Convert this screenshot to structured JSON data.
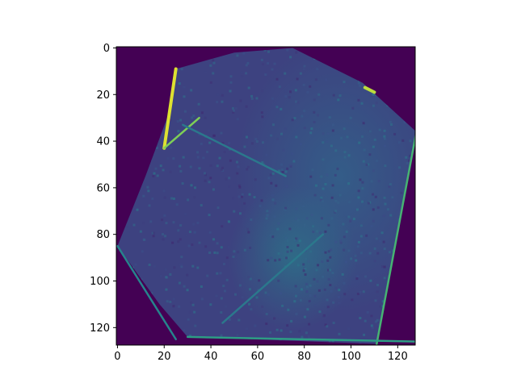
{
  "chart_data": {
    "type": "heatmap",
    "colormap": "viridis",
    "background_color": "#440154",
    "image_size": [
      128,
      128
    ],
    "xlim": [
      -0.5,
      127.5
    ],
    "ylim": [
      127.5,
      -0.5
    ],
    "xticks": [
      0,
      20,
      40,
      60,
      80,
      100,
      120
    ],
    "yticks": [
      0,
      20,
      40,
      60,
      80,
      100,
      120
    ],
    "xtick_labels": [
      "0",
      "20",
      "40",
      "60",
      "80",
      "100",
      "120"
    ],
    "ytick_labels": [
      "0",
      "20",
      "40",
      "60",
      "80",
      "100",
      "120"
    ],
    "title": "",
    "xlabel": "",
    "ylabel": "",
    "grid": false,
    "content_polygon": [
      [
        25,
        9
      ],
      [
        50,
        2
      ],
      [
        75,
        0
      ],
      [
        105,
        15
      ],
      [
        128,
        36
      ],
      [
        111,
        127
      ],
      [
        30,
        124
      ],
      [
        18,
        110
      ],
      [
        0,
        85
      ],
      [
        12,
        55
      ],
      [
        22,
        28
      ]
    ],
    "bright_segments": [
      {
        "from": [
          25,
          9
        ],
        "to": [
          20,
          43
        ],
        "level": 0.95
      },
      {
        "from": [
          20,
          43
        ],
        "to": [
          35,
          30
        ],
        "level": 0.8
      },
      {
        "from": [
          128,
          36
        ],
        "to": [
          111,
          127
        ],
        "level": 0.65
      },
      {
        "from": [
          30,
          124
        ],
        "to": [
          128,
          126
        ],
        "level": 0.55
      },
      {
        "from": [
          0,
          85
        ],
        "to": [
          25,
          125
        ],
        "level": 0.45
      },
      {
        "from": [
          28,
          33
        ],
        "to": [
          72,
          55
        ],
        "level": 0.4
      },
      {
        "from": [
          45,
          118
        ],
        "to": [
          88,
          80
        ],
        "level": 0.4
      },
      {
        "from": [
          106,
          17
        ],
        "to": [
          110,
          19
        ],
        "level": 0.9
      }
    ]
  }
}
